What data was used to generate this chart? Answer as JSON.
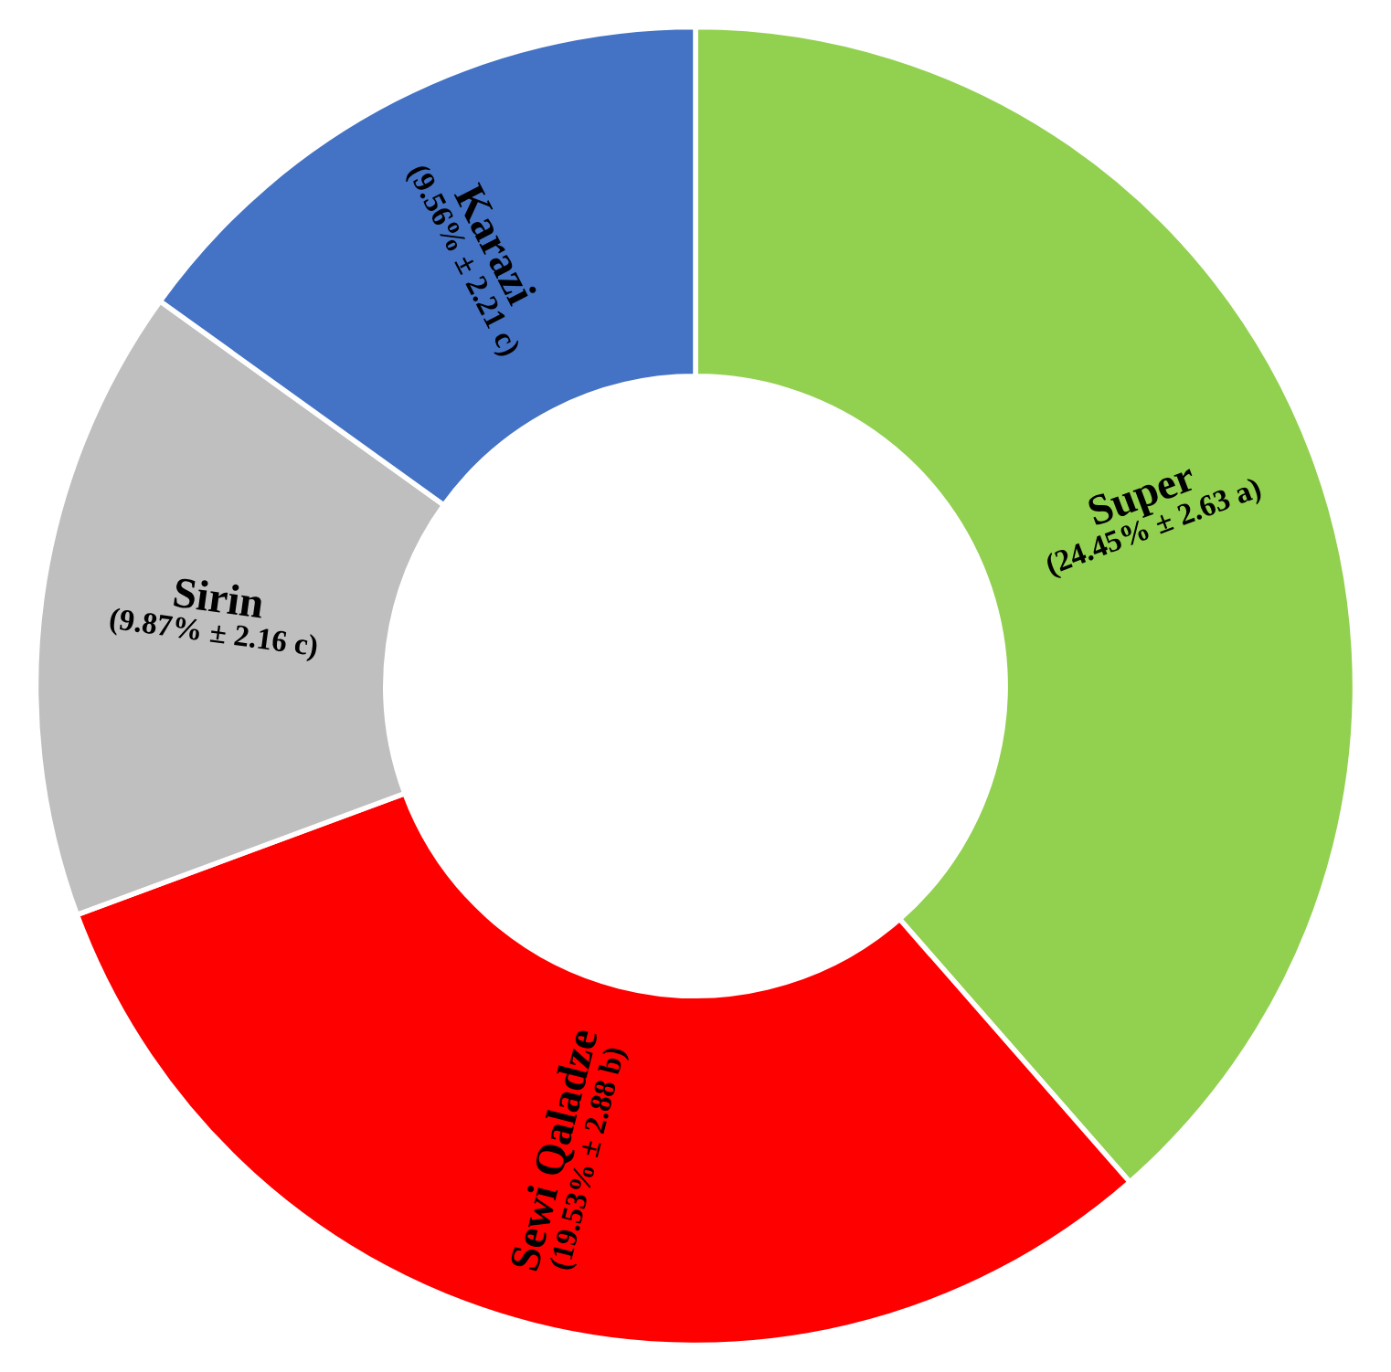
{
  "chart_data": {
    "type": "donut",
    "categories": [
      "Super",
      "Sewi Qaladze",
      "Sirin",
      "Karazi"
    ],
    "values": [
      24.45,
      19.53,
      9.87,
      9.56
    ],
    "colors": [
      "#92d050",
      "#ff0000",
      "#bfbfbf",
      "#4472c4"
    ],
    "value_labels": [
      "(24.45% ± 2.63 a)",
      "(19.53% ± 2.88 b)",
      "(9.87% ± 2.16 c)",
      "(9.56% ± 2.21 c)"
    ],
    "legend": false
  }
}
